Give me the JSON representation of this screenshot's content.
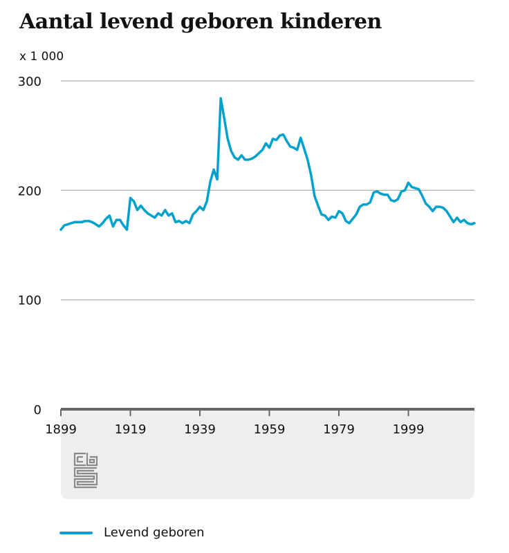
{
  "chart_data": {
    "type": "line",
    "title": "Aantal levend geboren kinderen",
    "unit_label": "x 1 000",
    "xlabel": "",
    "ylabel": "",
    "ylim": [
      0,
      300
    ],
    "yticks": [
      0,
      100,
      200,
      300
    ],
    "ytick_labels": [
      "0",
      "100",
      "200",
      "300"
    ],
    "xlim": [
      1899,
      2018
    ],
    "xticks": [
      1899,
      1919,
      1939,
      1959,
      1979,
      1999
    ],
    "xtick_labels": [
      "1899",
      "1919",
      "1939",
      "1959",
      "1979",
      "1999"
    ],
    "grid": true,
    "legend_position": "bottom-left",
    "series": [
      {
        "name": "Levend geboren",
        "color": "#00a1cd",
        "x_start": 1899,
        "values": [
          164,
          168,
          169,
          170,
          171,
          171,
          171,
          172,
          172,
          171,
          169,
          167,
          170,
          174,
          177,
          167,
          173,
          173,
          168,
          164,
          193,
          190,
          182,
          186,
          182,
          179,
          177,
          175,
          179,
          177,
          182,
          177,
          179,
          171,
          172,
          170,
          172,
          170,
          178,
          181,
          185,
          182,
          190,
          208,
          219,
          210,
          284,
          266,
          247,
          236,
          230,
          228,
          232,
          228,
          228,
          229,
          231,
          234,
          237,
          243,
          239,
          247,
          246,
          250,
          251,
          245,
          240,
          239,
          237,
          248,
          238,
          228,
          214,
          195,
          186,
          178,
          177,
          173,
          176,
          175,
          181,
          179,
          172,
          170,
          174,
          178,
          185,
          187,
          187,
          189,
          198,
          199,
          197,
          196,
          196,
          191,
          190,
          192,
          199,
          200,
          207,
          203,
          202,
          201,
          195,
          188,
          185,
          181,
          185,
          185,
          184,
          181,
          176,
          171,
          175,
          171,
          173,
          170,
          169,
          170
        ]
      }
    ]
  }
}
